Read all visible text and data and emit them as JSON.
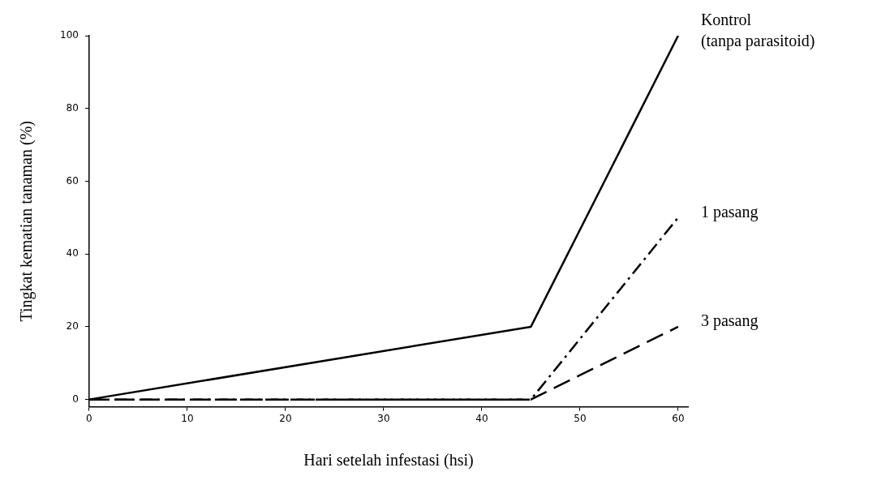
{
  "chart_data": {
    "type": "line",
    "xlabel": "Hari setelah infestasi (hsi)",
    "ylabel": "Tingkat kematian tanaman (%)",
    "xlim": [
      0,
      61
    ],
    "ylim": [
      -2,
      100
    ],
    "xticks": [
      0,
      10,
      20,
      30,
      40,
      50,
      60
    ],
    "yticks": [
      0,
      20,
      40,
      60,
      80,
      100
    ],
    "grid": false,
    "legend": false,
    "marker": "none",
    "series": [
      {
        "name": "Kontrol\n(tanpa parasitoid)",
        "color": "#000000",
        "line_style": "solid",
        "x": [
          0,
          45,
          60
        ],
        "values": [
          0,
          20,
          100
        ]
      },
      {
        "name": "1 pasang",
        "color": "#000000",
        "line_style": "dashdot",
        "x": [
          0,
          45,
          60
        ],
        "values": [
          0,
          0,
          50
        ]
      },
      {
        "name": "3 pasang",
        "color": "#000000",
        "line_style": "dashed",
        "x": [
          0,
          45,
          60
        ],
        "values": [
          0,
          0,
          20
        ]
      }
    ]
  }
}
